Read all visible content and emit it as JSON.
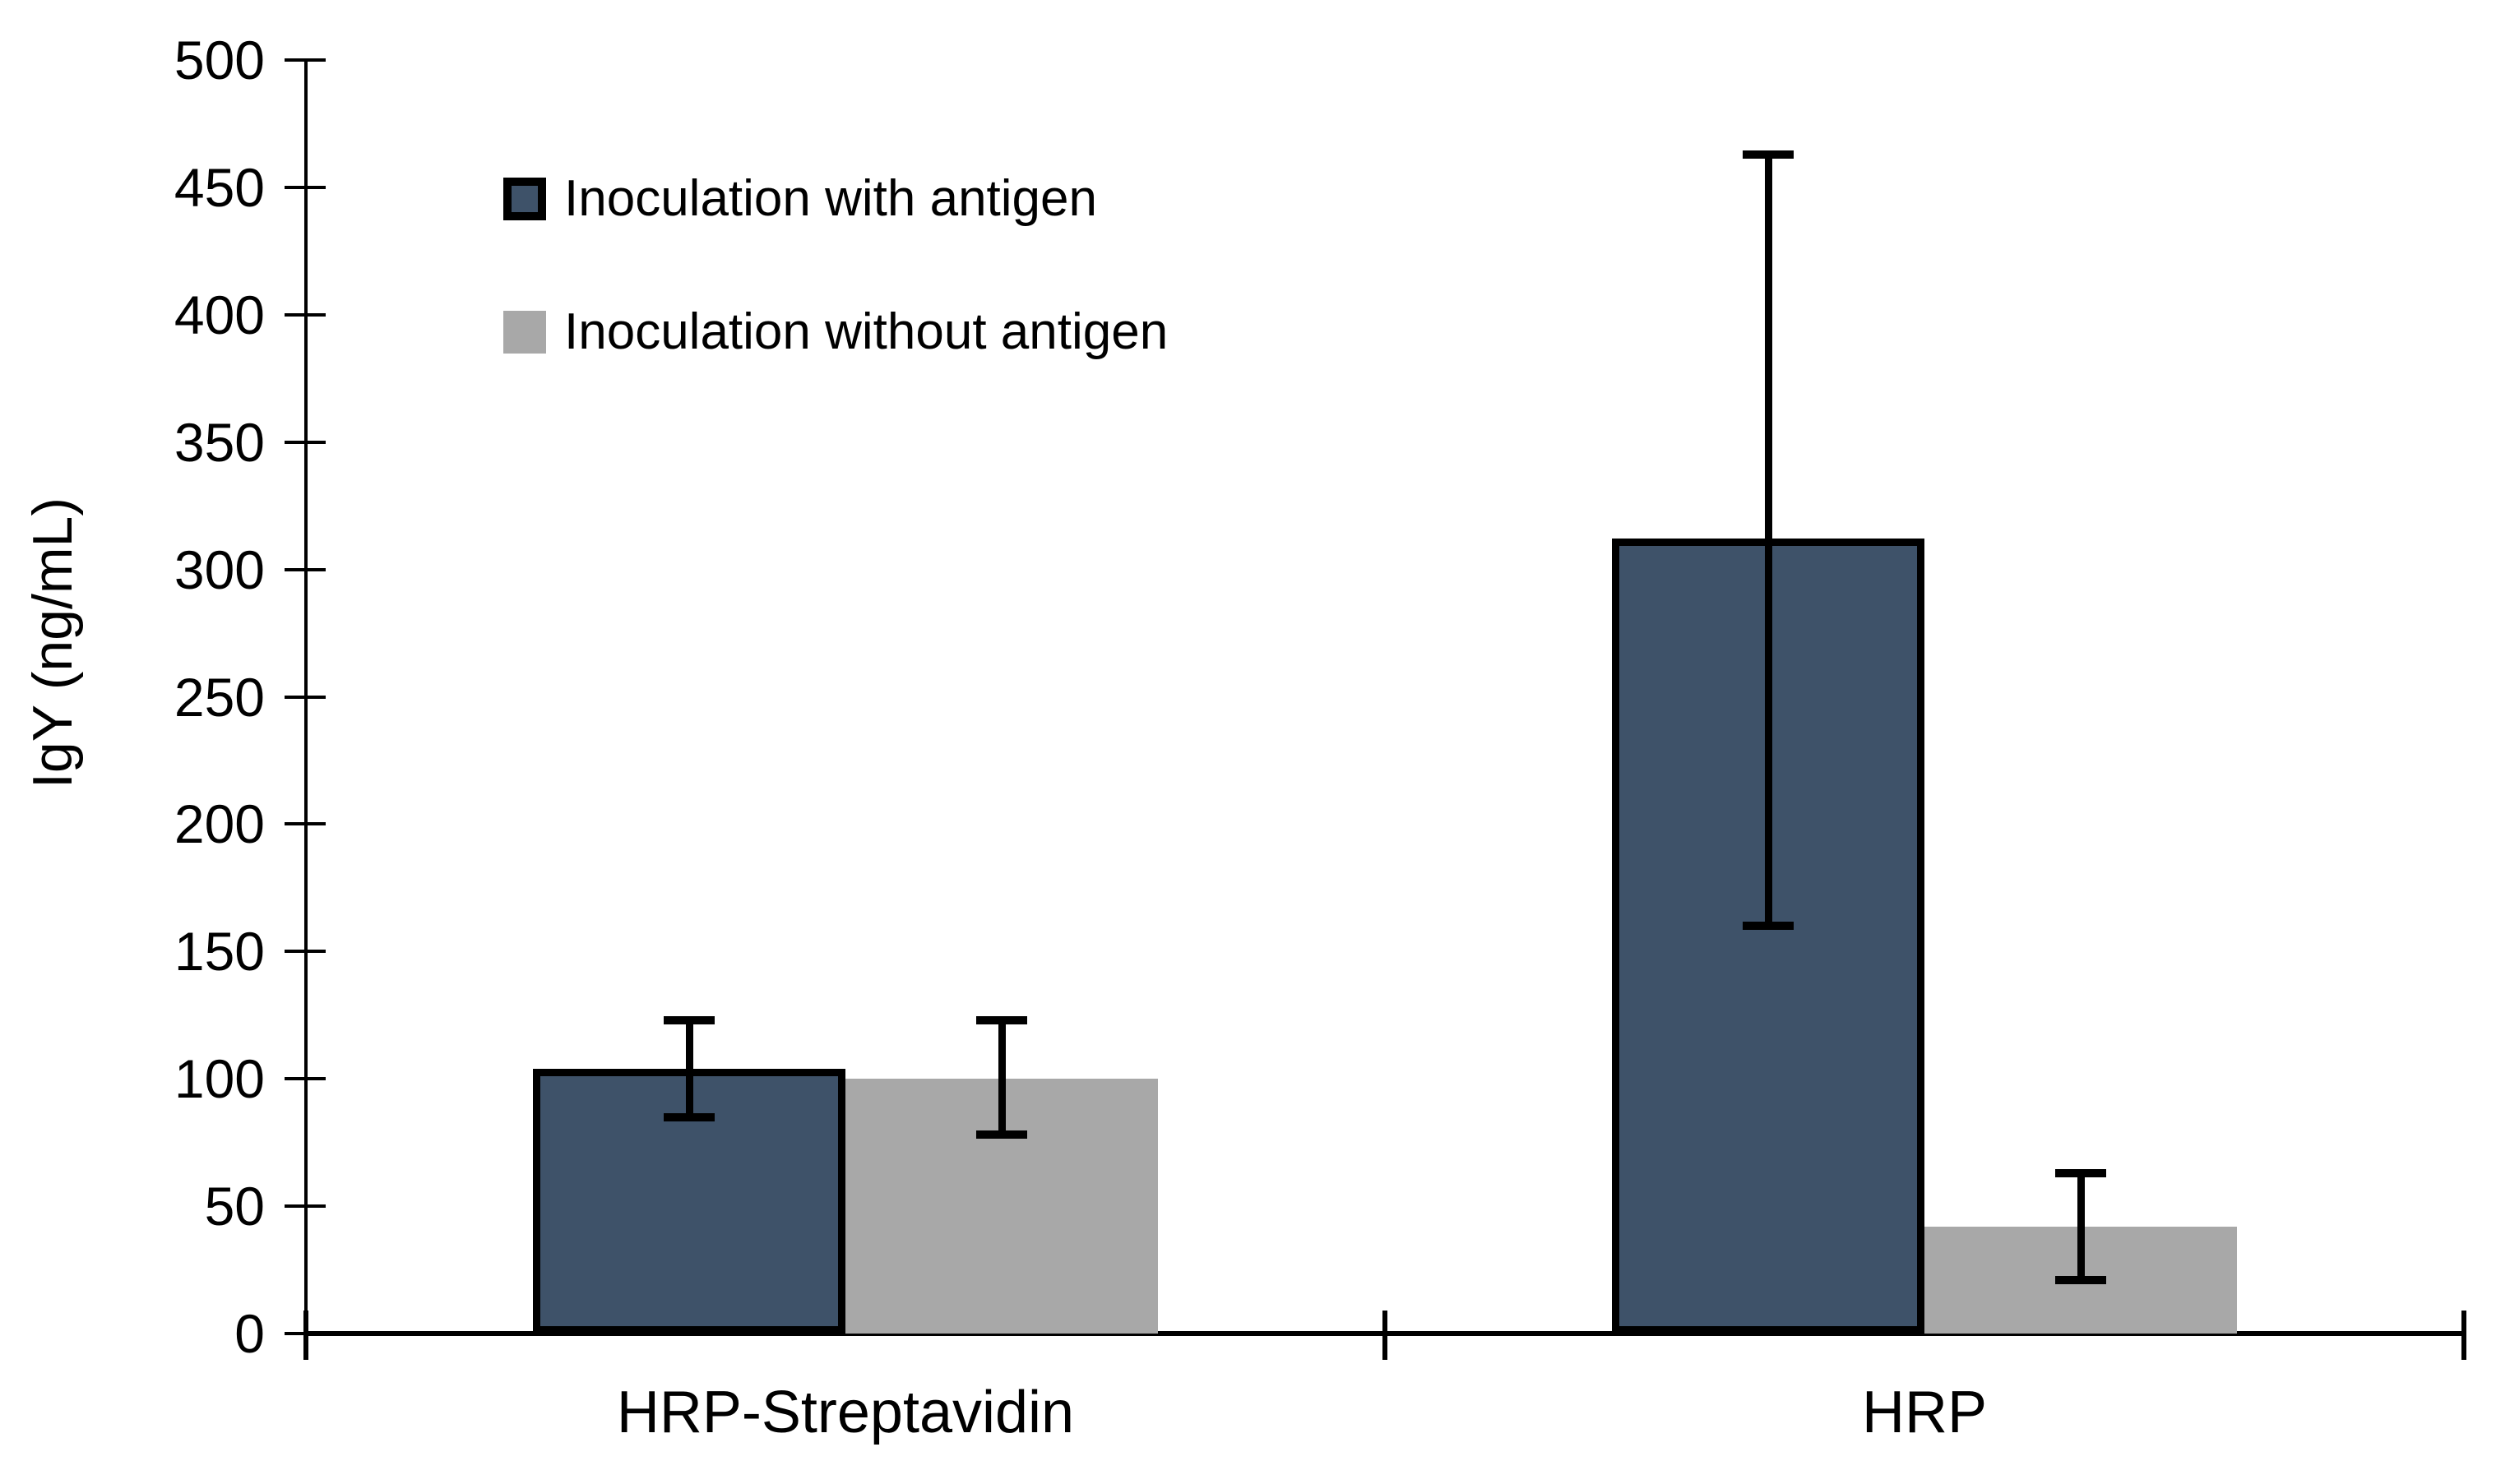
{
  "chart_data": {
    "type": "bar",
    "title": "",
    "ylabel": "IgY (ng/mL)",
    "xlabel": "",
    "ylim": [
      0,
      500
    ],
    "ytick_step": 50,
    "yticks": [
      0,
      50,
      100,
      150,
      200,
      250,
      300,
      350,
      400,
      450,
      500
    ],
    "categories": [
      "HRP-Streptavidin",
      "HRP"
    ],
    "series": [
      {
        "name": "Inoculation with antigen",
        "color": "#3E5269",
        "border_color": "#000000",
        "values": [
          104,
          312
        ],
        "error_low": [
          85,
          160
        ],
        "error_high": [
          123,
          463
        ]
      },
      {
        "name": "Inoculation without antigen",
        "color": "#A8A8A8",
        "border_color": null,
        "values": [
          100,
          42
        ],
        "error_low": [
          78,
          21
        ],
        "error_high": [
          123,
          63
        ]
      }
    ],
    "grid": false,
    "legend_position": "upper-left",
    "error_bar_color": "#000000",
    "axis_color": "#000000",
    "background": "#FFFFFF"
  }
}
